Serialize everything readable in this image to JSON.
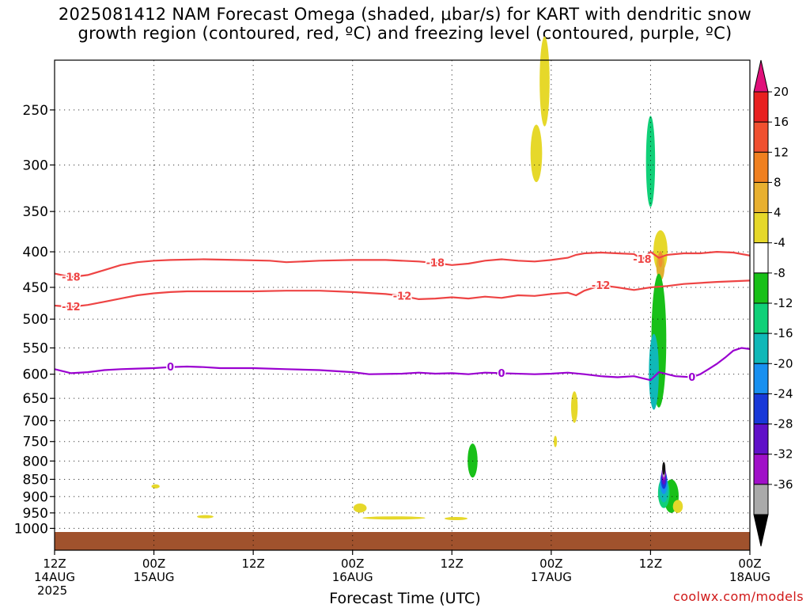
{
  "title_line1": "2025081412 NAM Forecast Omega (shaded, μbar/s) for KART with dendritic snow",
  "title_line2": "growth region (contoured, red, ºC) and freezing level (contoured, purple, ºC)",
  "credit": "coolwx.com/models",
  "chart_data": {
    "type": "time-height cross section",
    "xlabel": "Forecast Time (UTC)",
    "ylabel": "",
    "y_axis": {
      "scale": "log pressure (hPa), reversed",
      "ticks": [
        250,
        300,
        350,
        400,
        450,
        500,
        550,
        600,
        650,
        700,
        750,
        800,
        850,
        900,
        950,
        1000
      ]
    },
    "x_axis": {
      "range_hours": [
        0,
        84
      ],
      "ticks": [
        {
          "h": 0,
          "l1": "12Z",
          "l2": "14AUG",
          "l3": "2025"
        },
        {
          "h": 12,
          "l1": "00Z",
          "l2": "15AUG",
          "l3": ""
        },
        {
          "h": 24,
          "l1": "12Z",
          "l2": "",
          "l3": ""
        },
        {
          "h": 36,
          "l1": "00Z",
          "l2": "16AUG",
          "l3": ""
        },
        {
          "h": 48,
          "l1": "12Z",
          "l2": "",
          "l3": ""
        },
        {
          "h": 60,
          "l1": "00Z",
          "l2": "17AUG",
          "l3": ""
        },
        {
          "h": 72,
          "l1": "12Z",
          "l2": "",
          "l3": ""
        },
        {
          "h": 84,
          "l1": "00Z",
          "l2": "18AUG",
          "l3": ""
        }
      ]
    },
    "grid": true,
    "colorbar": {
      "labels": [
        "20",
        "16",
        "12",
        "8",
        "4",
        "-4",
        "-8",
        "-12",
        "-16",
        "-20",
        "-24",
        "-28",
        "-32",
        "-36"
      ],
      "top_arrow_color": "#e0107a",
      "bottom_arrow_color": "#000000",
      "colors": [
        "#e82020",
        "#f05030",
        "#f08020",
        "#e8b030",
        "#e6d82a",
        "#ffffff",
        "#18c018",
        "#10d078",
        "#10b8b8",
        "#1890f0",
        "#1838d8",
        "#6010c8",
        "#a010c8",
        "#aaaaaa"
      ]
    },
    "contours": [
      {
        "label": "-18",
        "color": "#ee4444",
        "pts": [
          [
            0,
            430
          ],
          [
            2,
            435
          ],
          [
            4,
            432
          ],
          [
            6,
            425
          ],
          [
            8,
            418
          ],
          [
            10,
            414
          ],
          [
            12,
            412
          ],
          [
            14,
            411
          ],
          [
            18,
            410
          ],
          [
            22,
            411
          ],
          [
            26,
            412
          ],
          [
            28,
            414
          ],
          [
            32,
            412
          ],
          [
            36,
            411
          ],
          [
            40,
            411
          ],
          [
            44,
            413
          ],
          [
            46,
            415
          ],
          [
            48,
            418
          ],
          [
            50,
            416
          ],
          [
            52,
            412
          ],
          [
            54,
            410
          ],
          [
            56,
            412
          ],
          [
            58,
            413
          ],
          [
            60,
            411
          ],
          [
            62,
            408
          ],
          [
            63,
            404
          ],
          [
            64,
            402
          ],
          [
            66,
            401
          ],
          [
            68,
            402
          ],
          [
            70,
            403
          ],
          [
            71,
            410
          ],
          [
            72,
            400
          ],
          [
            73,
            408
          ],
          [
            74,
            404
          ],
          [
            76,
            402
          ],
          [
            78,
            402
          ],
          [
            80,
            400
          ],
          [
            82,
            401
          ],
          [
            84,
            405
          ]
        ]
      },
      {
        "label": "-12",
        "color": "#ee4444",
        "pts": [
          [
            0,
            478
          ],
          [
            2,
            480
          ],
          [
            4,
            477
          ],
          [
            6,
            472
          ],
          [
            8,
            467
          ],
          [
            10,
            462
          ],
          [
            12,
            459
          ],
          [
            14,
            457
          ],
          [
            16,
            456
          ],
          [
            20,
            456
          ],
          [
            24,
            456
          ],
          [
            28,
            455
          ],
          [
            32,
            455
          ],
          [
            36,
            457
          ],
          [
            40,
            460
          ],
          [
            42,
            463
          ],
          [
            44,
            468
          ],
          [
            46,
            467
          ],
          [
            48,
            465
          ],
          [
            50,
            467
          ],
          [
            52,
            464
          ],
          [
            54,
            466
          ],
          [
            56,
            462
          ],
          [
            58,
            463
          ],
          [
            60,
            460
          ],
          [
            62,
            458
          ],
          [
            63,
            462
          ],
          [
            64,
            455
          ],
          [
            66,
            447
          ],
          [
            68,
            450
          ],
          [
            70,
            454
          ],
          [
            72,
            450
          ],
          [
            74,
            448
          ],
          [
            76,
            445
          ],
          [
            80,
            442
          ],
          [
            84,
            440
          ]
        ]
      },
      {
        "label": "0",
        "color": "#9a00d0",
        "pts": [
          [
            0,
            590
          ],
          [
            2,
            598
          ],
          [
            4,
            596
          ],
          [
            6,
            592
          ],
          [
            8,
            590
          ],
          [
            10,
            589
          ],
          [
            12,
            588
          ],
          [
            14,
            586
          ],
          [
            16,
            585
          ],
          [
            18,
            586
          ],
          [
            20,
            588
          ],
          [
            24,
            588
          ],
          [
            28,
            590
          ],
          [
            32,
            592
          ],
          [
            36,
            596
          ],
          [
            38,
            600
          ],
          [
            42,
            599
          ],
          [
            44,
            597
          ],
          [
            46,
            599
          ],
          [
            48,
            598
          ],
          [
            50,
            600
          ],
          [
            52,
            597
          ],
          [
            54,
            598
          ],
          [
            58,
            600
          ],
          [
            60,
            599
          ],
          [
            62,
            597
          ],
          [
            64,
            600
          ],
          [
            66,
            604
          ],
          [
            68,
            606
          ],
          [
            70,
            604
          ],
          [
            72,
            612
          ],
          [
            73,
            596
          ],
          [
            75,
            604
          ],
          [
            77,
            606
          ],
          [
            78,
            600
          ],
          [
            79,
            590
          ],
          [
            80,
            580
          ],
          [
            81,
            568
          ],
          [
            82,
            555
          ],
          [
            83,
            550
          ],
          [
            84,
            552
          ]
        ]
      }
    ],
    "omega_blobs": [
      {
        "t": 59.2,
        "p": 230,
        "rt": 0.6,
        "ph": 68,
        "color": "#e6d82a"
      },
      {
        "t": 58.2,
        "p": 290,
        "rt": 0.7,
        "ph": 55,
        "color": "#e6d82a"
      },
      {
        "t": 60.5,
        "p": 750,
        "rt": 0.2,
        "ph": 28,
        "color": "#e6d82a"
      },
      {
        "t": 62.8,
        "p": 670,
        "rt": 0.4,
        "ph": 70,
        "color": "#e6d82a"
      },
      {
        "t": 73.2,
        "p": 400,
        "rt": 0.85,
        "ph": 55,
        "color": "#e6d82a"
      },
      {
        "t": 73.2,
        "p": 420,
        "rt": 0.5,
        "ph": 40,
        "color": "#e0b030"
      },
      {
        "t": 73.2,
        "p": 410,
        "rt": 0.25,
        "ph": 22,
        "color": "#f09030"
      },
      {
        "t": 12.2,
        "p": 870,
        "rt": 0.5,
        "ph": 12,
        "color": "#e6d82a"
      },
      {
        "t": 18.2,
        "p": 962,
        "rt": 1.0,
        "ph": 6,
        "color": "#e6d82a"
      },
      {
        "t": 36.9,
        "p": 935,
        "rt": 0.8,
        "ph": 28,
        "color": "#e6d82a"
      },
      {
        "t": 41.0,
        "p": 966,
        "rt": 3.8,
        "ph": 8,
        "color": "#e6d82a"
      },
      {
        "t": 48.5,
        "p": 968,
        "rt": 1.4,
        "ph": 6,
        "color": "#e6d82a"
      },
      {
        "t": 73.0,
        "p": 550,
        "rt": 0.9,
        "ph": 240,
        "color": "#18c018"
      },
      {
        "t": 74.5,
        "p": 900,
        "rt": 0.9,
        "ph": 100,
        "color": "#18c018"
      },
      {
        "t": 75.3,
        "p": 930,
        "rt": 0.6,
        "ph": 40,
        "color": "#e6d82a"
      },
      {
        "t": 50.5,
        "p": 800,
        "rt": 0.6,
        "ph": 90,
        "color": "#18c018"
      },
      {
        "t": 72.0,
        "p": 300,
        "rt": 0.55,
        "ph": 90,
        "color": "#10d078"
      },
      {
        "t": 72.4,
        "p": 600,
        "rt": 0.6,
        "ph": 150,
        "color": "#10b8b8"
      },
      {
        "t": 73.6,
        "p": 890,
        "rt": 0.7,
        "ph": 90,
        "color": "#10d078"
      },
      {
        "t": 73.6,
        "p": 880,
        "rt": 0.55,
        "ph": 75,
        "color": "#10b8b8"
      },
      {
        "t": 73.6,
        "p": 860,
        "rt": 0.45,
        "ph": 65,
        "color": "#1890f0"
      },
      {
        "t": 73.6,
        "p": 850,
        "rt": 0.35,
        "ph": 55,
        "color": "#1838d8"
      },
      {
        "t": 73.6,
        "p": 840,
        "rt": 0.28,
        "ph": 50,
        "color": "#6010c8"
      },
      {
        "t": 73.6,
        "p": 830,
        "rt": 0.2,
        "ph": 45,
        "color": "#a010c8"
      },
      {
        "t": 73.6,
        "p": 825,
        "rt": 0.14,
        "ph": 40,
        "color": "#aaaaaa"
      },
      {
        "t": 73.6,
        "p": 820,
        "rt": 0.09,
        "ph": 35,
        "color": "#111111"
      }
    ],
    "terrain_color": "#a0522d"
  }
}
